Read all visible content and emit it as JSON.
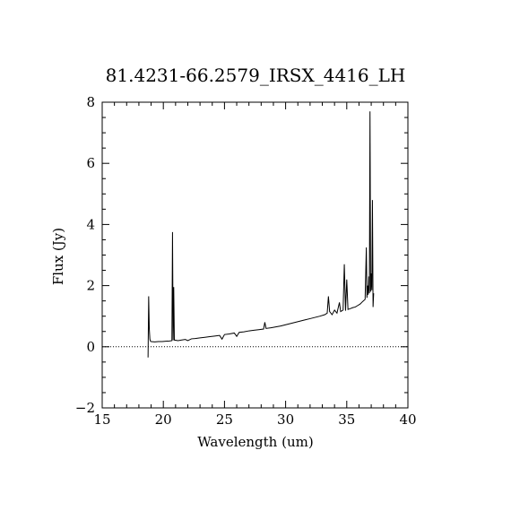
{
  "chart_data": {
    "type": "line",
    "title": "81.4231-66.2579_IRSX_4416_LH",
    "xlabel": "Wavelength (um)",
    "ylabel": "Flux (Jy)",
    "xlim": [
      15,
      40
    ],
    "ylim": [
      -2,
      8
    ],
    "x_ticks": [
      "15",
      "20",
      "25",
      "30",
      "35",
      "40"
    ],
    "y_ticks": [
      "−2",
      "0",
      "2",
      "4",
      "6",
      "8"
    ],
    "zero_line": {
      "y": 0,
      "style": "dotted"
    },
    "grid": false,
    "series": [
      {
        "color": "#000000",
        "points": [
          [
            18.75,
            -0.35
          ],
          [
            18.8,
            1.65
          ],
          [
            18.85,
            0.6
          ],
          [
            18.9,
            0.25
          ],
          [
            18.95,
            0.18
          ],
          [
            19.0,
            0.17
          ],
          [
            19.3,
            0.16
          ],
          [
            19.6,
            0.17
          ],
          [
            19.9,
            0.17
          ],
          [
            20.2,
            0.18
          ],
          [
            20.5,
            0.19
          ],
          [
            20.7,
            0.2
          ],
          [
            20.75,
            3.75
          ],
          [
            20.8,
            0.21
          ],
          [
            20.85,
            1.95
          ],
          [
            20.9,
            0.22
          ],
          [
            21.2,
            0.2
          ],
          [
            21.5,
            0.22
          ],
          [
            21.8,
            0.24
          ],
          [
            22.0,
            0.2
          ],
          [
            22.3,
            0.26
          ],
          [
            22.6,
            0.27
          ],
          [
            23.0,
            0.29
          ],
          [
            23.4,
            0.31
          ],
          [
            23.8,
            0.33
          ],
          [
            24.2,
            0.35
          ],
          [
            24.6,
            0.37
          ],
          [
            24.8,
            0.25
          ],
          [
            25.0,
            0.4
          ],
          [
            25.4,
            0.42
          ],
          [
            25.8,
            0.45
          ],
          [
            26.0,
            0.34
          ],
          [
            26.2,
            0.47
          ],
          [
            26.6,
            0.49
          ],
          [
            27.0,
            0.52
          ],
          [
            27.4,
            0.54
          ],
          [
            27.8,
            0.56
          ],
          [
            28.2,
            0.58
          ],
          [
            28.3,
            0.8
          ],
          [
            28.4,
            0.6
          ],
          [
            28.8,
            0.62
          ],
          [
            29.2,
            0.65
          ],
          [
            29.6,
            0.68
          ],
          [
            30.0,
            0.72
          ],
          [
            30.4,
            0.76
          ],
          [
            30.8,
            0.8
          ],
          [
            31.2,
            0.84
          ],
          [
            31.6,
            0.88
          ],
          [
            32.0,
            0.92
          ],
          [
            32.4,
            0.96
          ],
          [
            32.8,
            1.0
          ],
          [
            33.2,
            1.05
          ],
          [
            33.4,
            1.1
          ],
          [
            33.5,
            1.65
          ],
          [
            33.6,
            1.15
          ],
          [
            33.8,
            1.05
          ],
          [
            34.0,
            1.2
          ],
          [
            34.2,
            1.1
          ],
          [
            34.4,
            1.45
          ],
          [
            34.5,
            1.15
          ],
          [
            34.7,
            1.2
          ],
          [
            34.8,
            2.7
          ],
          [
            34.9,
            1.18
          ],
          [
            35.0,
            2.2
          ],
          [
            35.1,
            1.22
          ],
          [
            35.3,
            1.25
          ],
          [
            35.5,
            1.28
          ],
          [
            35.7,
            1.3
          ],
          [
            35.9,
            1.35
          ],
          [
            36.1,
            1.4
          ],
          [
            36.3,
            1.48
          ],
          [
            36.5,
            1.55
          ],
          [
            36.6,
            3.25
          ],
          [
            36.65,
            1.6
          ],
          [
            36.7,
            2.0
          ],
          [
            36.75,
            1.7
          ],
          [
            36.8,
            2.3
          ],
          [
            36.85,
            1.75
          ],
          [
            36.9,
            7.7
          ],
          [
            36.95,
            1.8
          ],
          [
            37.0,
            2.4
          ],
          [
            37.05,
            1.85
          ],
          [
            37.1,
            4.8
          ],
          [
            37.15,
            1.3
          ],
          [
            37.2,
            1.75
          ]
        ]
      }
    ]
  }
}
